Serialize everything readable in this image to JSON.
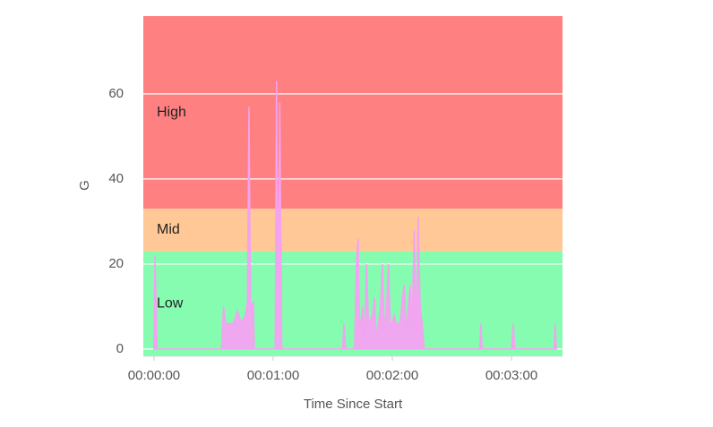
{
  "chart_data": {
    "type": "area",
    "xlabel": "Time Since Start",
    "ylabel": "G",
    "xlim": [
      -5.4,
      205.7
    ],
    "ylim": [
      -1.7,
      78.3
    ],
    "xticks": [
      {
        "value": 0,
        "label": "00:00:00"
      },
      {
        "value": 60,
        "label": "00:01:00"
      },
      {
        "value": 120,
        "label": "00:02:00"
      },
      {
        "value": 180,
        "label": "00:03:00"
      }
    ],
    "yticks": [
      0,
      20,
      40,
      60
    ],
    "grid": true,
    "bands": [
      {
        "label": "Low",
        "from": -1.7,
        "to": 23,
        "color": "#85fcb0"
      },
      {
        "label": "Mid",
        "from": 23,
        "to": 33,
        "color": "#ffc896"
      },
      {
        "label": "High",
        "from": 33,
        "to": 78.3,
        "color": "#ff8080"
      }
    ],
    "series": [
      {
        "color": "#f4a2f2",
        "x": [
          0,
          0.5,
          1.5,
          34,
          35,
          36,
          40,
          42,
          44,
          46,
          47,
          47.8,
          48.6,
          50,
          50.5,
          61,
          61.7,
          62.4,
          63.3,
          64.3,
          95,
          95.6,
          96.5,
          101,
          102,
          102.8,
          103.5,
          105,
          106,
          107,
          108,
          110,
          111,
          112,
          114,
          115,
          116,
          117,
          118,
          119,
          121,
          122,
          124,
          125,
          126,
          127,
          129,
          130,
          131,
          132,
          133,
          134,
          135,
          136,
          164,
          164.6,
          165.2,
          180,
          180.9,
          181.6,
          201.5,
          202,
          202.6
        ],
        "values": [
          0,
          22,
          0,
          0,
          10,
          6,
          6,
          9,
          6,
          8,
          11,
          57,
          10,
          11,
          0,
          0,
          63,
          8,
          58,
          0,
          0,
          6,
          0,
          0,
          22,
          26,
          4,
          10,
          3,
          20,
          6,
          8,
          12,
          2,
          10,
          20,
          4,
          9,
          20,
          5,
          8,
          6,
          6,
          12,
          15,
          4,
          15,
          6,
          28,
          4,
          31,
          10,
          6,
          0,
          0,
          6,
          0,
          0,
          6,
          0,
          0,
          6,
          0
        ]
      }
    ]
  }
}
